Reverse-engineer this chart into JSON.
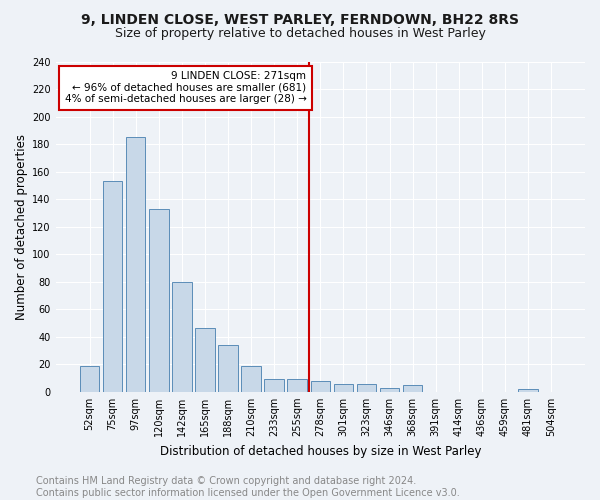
{
  "title1": "9, LINDEN CLOSE, WEST PARLEY, FERNDOWN, BH22 8RS",
  "title2": "Size of property relative to detached houses in West Parley",
  "xlabel": "Distribution of detached houses by size in West Parley",
  "ylabel": "Number of detached properties",
  "footer": "Contains HM Land Registry data © Crown copyright and database right 2024.\nContains public sector information licensed under the Open Government Licence v3.0.",
  "bar_labels": [
    "52sqm",
    "75sqm",
    "97sqm",
    "120sqm",
    "142sqm",
    "165sqm",
    "188sqm",
    "210sqm",
    "233sqm",
    "255sqm",
    "278sqm",
    "301sqm",
    "323sqm",
    "346sqm",
    "368sqm",
    "391sqm",
    "414sqm",
    "436sqm",
    "459sqm",
    "481sqm",
    "504sqm"
  ],
  "bar_values": [
    19,
    153,
    185,
    133,
    80,
    46,
    34,
    19,
    9,
    9,
    8,
    6,
    6,
    3,
    5,
    0,
    0,
    0,
    0,
    2,
    0
  ],
  "bar_color": "#c8d8e8",
  "bar_edge_color": "#5b8db8",
  "vline_x_index": 10,
  "annotation_text": "9 LINDEN CLOSE: 271sqm\n← 96% of detached houses are smaller (681)\n4% of semi-detached houses are larger (28) →",
  "vline_color": "#cc0000",
  "annotation_box_color": "#ffffff",
  "annotation_border_color": "#cc0000",
  "ylim": [
    0,
    240
  ],
  "yticks": [
    0,
    20,
    40,
    60,
    80,
    100,
    120,
    140,
    160,
    180,
    200,
    220,
    240
  ],
  "bg_color": "#eef2f7",
  "grid_color": "#ffffff",
  "title1_fontsize": 10,
  "title2_fontsize": 9,
  "xlabel_fontsize": 8.5,
  "ylabel_fontsize": 8.5,
  "footer_fontsize": 7,
  "tick_fontsize": 7,
  "annotation_fontsize": 7.5
}
